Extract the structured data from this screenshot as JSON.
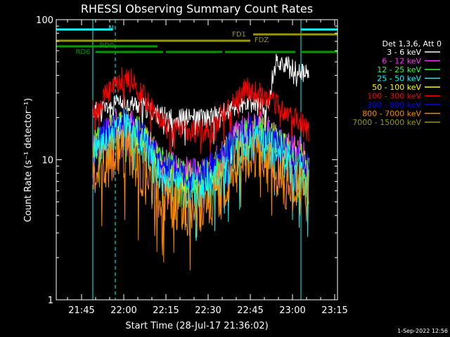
{
  "chart_data": {
    "type": "line",
    "title": "RHESSI Observing Summary Count Rates",
    "xlabel": "Start Time (28-Jul-17 21:36:02)",
    "ylabel": "Count Rate (s⁻¹ detector⁻¹)",
    "y_scale": "log",
    "ylim": [
      1,
      100
    ],
    "xlim": [
      "21:36",
      "23:16"
    ],
    "x_ticks": [
      "21:45",
      "22:00",
      "22:15",
      "22:30",
      "22:45",
      "23:00",
      "23:15"
    ],
    "y_ticks": [
      "1",
      "10",
      "100"
    ],
    "legend_header": "Det 1,3,6, Att 0",
    "legend_position": "right",
    "footer": "1-Sep-2022 12:56",
    "data_start": "21:49",
    "data_end": "23:06",
    "x_times": [
      "21:49",
      "21:52",
      "21:55",
      "21:58",
      "22:01",
      "22:04",
      "22:07",
      "22:10",
      "22:13",
      "22:16",
      "22:19",
      "22:22",
      "22:25",
      "22:28",
      "22:31",
      "22:34",
      "22:37",
      "22:40",
      "22:43",
      "22:46",
      "22:49",
      "22:52",
      "22:55",
      "22:58",
      "23:01",
      "23:04",
      "23:06"
    ],
    "series": [
      {
        "name": "3 - 6 keV",
        "color": "#ffffff",
        "values": [
          22,
          23,
          24,
          25,
          25,
          25,
          24,
          22,
          21,
          20,
          20,
          20,
          20,
          20,
          20,
          21,
          22,
          23,
          24,
          25,
          24,
          23,
          50,
          48,
          45,
          42,
          40
        ]
      },
      {
        "name": "6 - 12 keV",
        "color": "#ff33ff",
        "values": [
          12,
          14,
          16,
          18,
          18,
          17,
          15,
          12,
          10,
          9,
          8.5,
          8,
          8,
          8,
          8.5,
          10,
          12,
          14,
          16,
          17,
          17,
          16,
          15,
          13,
          12,
          11,
          9
        ]
      },
      {
        "name": "12 - 25 keV",
        "color": "#33ff33",
        "values": [
          12,
          14,
          16,
          18,
          18,
          17,
          15,
          12,
          10,
          9,
          8,
          7.5,
          7.5,
          7.5,
          8,
          9,
          11,
          13,
          15,
          16,
          16,
          15,
          14,
          12,
          11,
          10,
          8
        ]
      },
      {
        "name": "25 - 50 keV",
        "color": "#00ffff",
        "values": [
          10,
          12,
          14,
          16,
          16,
          15,
          13,
          10,
          8,
          7,
          6.5,
          6,
          6,
          6,
          6.5,
          7,
          8.5,
          10,
          12,
          13,
          13,
          12,
          11,
          10,
          9,
          8,
          7
        ]
      },
      {
        "name": "50 - 100 keV",
        "color": "#ffff00",
        "values": [
          12,
          14,
          16,
          18,
          18,
          17,
          14,
          12,
          10,
          9,
          8,
          7.5,
          7.5,
          7.5,
          8,
          9,
          11,
          13,
          15,
          16,
          16,
          15,
          14,
          12,
          11,
          10,
          8
        ]
      },
      {
        "name": "100 - 300 keV",
        "color": "#ff0000",
        "values": [
          22,
          26,
          32,
          37,
          38,
          35,
          29,
          23,
          19,
          17,
          16,
          16,
          16,
          16,
          17,
          19,
          23,
          27,
          31,
          32,
          30,
          27,
          25,
          22,
          20,
          18,
          16
        ]
      },
      {
        "name": "300 - 800 keV",
        "color": "#0000ff",
        "values": [
          12,
          14,
          17,
          18,
          18,
          17,
          15,
          12,
          10,
          9,
          8.5,
          8,
          8,
          8,
          8.5,
          10,
          12,
          14,
          15,
          16,
          16,
          15,
          14,
          12,
          11,
          10,
          9
        ]
      },
      {
        "name": "800 - 7000 keV",
        "color": "#ff8800",
        "values": [
          8,
          9,
          10,
          11,
          11,
          10,
          8.5,
          7,
          5.5,
          5,
          4.5,
          4.5,
          4.5,
          4.5,
          5,
          6,
          7,
          8.5,
          10,
          11,
          10,
          9,
          8,
          7,
          6.5,
          6,
          5.5
        ]
      },
      {
        "name": "7000 - 15000 keV",
        "color": "#999900",
        "values": [
          12,
          14,
          16,
          18,
          18,
          17,
          15,
          12,
          10,
          9,
          8,
          7.5,
          7.5,
          7.5,
          8,
          9,
          11,
          13,
          15,
          16,
          16,
          15,
          14,
          12,
          11,
          10,
          8
        ]
      }
    ],
    "flags": [
      {
        "name": "N",
        "color": "#00ffff",
        "segments": [
          [
            "21:36",
            "21:56"
          ],
          [
            "23:03",
            "23:16"
          ]
        ]
      },
      {
        "name": "FD1",
        "color": "#999900",
        "segments": [
          [
            "22:46",
            "23:16"
          ]
        ]
      },
      {
        "name": "FDZ",
        "color": "#999900",
        "segments": [
          [
            "21:36",
            "22:45"
          ]
        ]
      },
      {
        "name": "RD0",
        "color": "#009900",
        "segments": [
          [
            "21:36",
            "22:12"
          ]
        ]
      },
      {
        "name": "RD6",
        "color": "#009900",
        "segments": [
          [
            "21:50",
            "22:14"
          ],
          [
            "22:15",
            "22:35"
          ],
          [
            "22:36",
            "23:01"
          ],
          [
            "23:03",
            "23:16"
          ]
        ]
      }
    ],
    "vlines_solid": [
      "21:36",
      "21:49",
      "23:03"
    ],
    "vlines_dashed": [
      "21:57",
      "23:16"
    ]
  }
}
